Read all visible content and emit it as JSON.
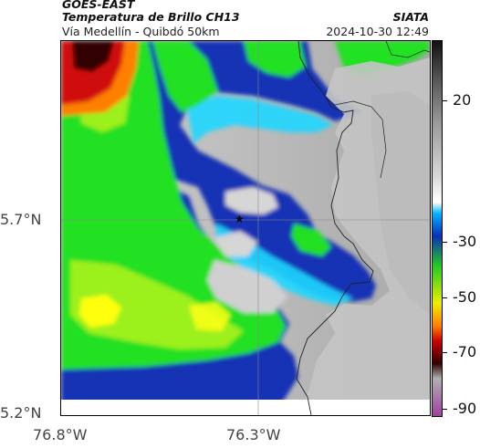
{
  "header": {
    "satellite": "GOES-EAST",
    "title": "Temperatura de Brillo CH13",
    "subtitle": "Vía Medellín - Quibdó 50km",
    "organization": "SIATA",
    "timestamp": "2024-10-30 12:49"
  },
  "axes": {
    "lat_ticks": [
      "5.7°N",
      "5.2°N"
    ],
    "lon_ticks": [
      "76.8°W",
      "76.3°W"
    ]
  },
  "colorbar": {
    "ticks": [
      "20",
      "-30",
      "-50",
      "-70",
      "-90"
    ],
    "colors": [
      "#111111",
      "#555555",
      "#9a9a9a",
      "#d8d8d8",
      "#ffffff",
      "#00b4ff",
      "#0a2fb8",
      "#22cc22",
      "#f0ee00",
      "#ff7f00",
      "#cc0000",
      "#330000",
      "#b0b0b0",
      "#a13fa1"
    ]
  },
  "colors": {
    "cold_cloud_gray": "#c8c8c8",
    "deep_blue": "#1233b5",
    "cyan": "#1ed7ff",
    "green": "#20e020",
    "lime": "#9cf01c",
    "yellow": "#ffff10",
    "red": "#d01010",
    "border_line": "#222222"
  },
  "marker": {
    "symbol": "★"
  }
}
